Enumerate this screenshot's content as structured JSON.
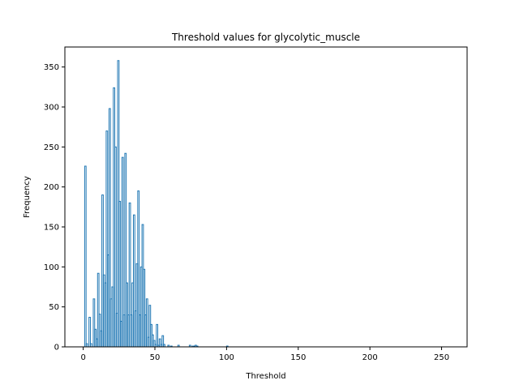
{
  "chart_data": {
    "type": "bar",
    "style": "step-histogram",
    "title": "Threshold values for glycolytic_muscle",
    "xlabel": "Threshold",
    "ylabel": "Frequency",
    "xlim": [
      -12.8,
      267.8
    ],
    "ylim": [
      0,
      375
    ],
    "xticks": [
      0,
      50,
      100,
      150,
      200,
      250
    ],
    "yticks": [
      0,
      50,
      100,
      150,
      200,
      250,
      300,
      350
    ],
    "grid": false,
    "line_color": "#1f77b4",
    "bin_width": 1,
    "bins": [
      {
        "x": 0,
        "value": 0
      },
      {
        "x": 1,
        "value": 226
      },
      {
        "x": 2,
        "value": 4
      },
      {
        "x": 3,
        "value": 0
      },
      {
        "x": 4,
        "value": 37
      },
      {
        "x": 5,
        "value": 4
      },
      {
        "x": 6,
        "value": 0
      },
      {
        "x": 7,
        "value": 60
      },
      {
        "x": 8,
        "value": 22
      },
      {
        "x": 9,
        "value": 10
      },
      {
        "x": 10,
        "value": 92
      },
      {
        "x": 11,
        "value": 41
      },
      {
        "x": 12,
        "value": 20
      },
      {
        "x": 13,
        "value": 190
      },
      {
        "x": 14,
        "value": 90
      },
      {
        "x": 15,
        "value": 80
      },
      {
        "x": 16,
        "value": 270
      },
      {
        "x": 17,
        "value": 115
      },
      {
        "x": 18,
        "value": 298
      },
      {
        "x": 19,
        "value": 60
      },
      {
        "x": 20,
        "value": 75
      },
      {
        "x": 21,
        "value": 324
      },
      {
        "x": 22,
        "value": 250
      },
      {
        "x": 23,
        "value": 42
      },
      {
        "x": 24,
        "value": 358
      },
      {
        "x": 25,
        "value": 182
      },
      {
        "x": 26,
        "value": 32
      },
      {
        "x": 27,
        "value": 237
      },
      {
        "x": 28,
        "value": 40
      },
      {
        "x": 29,
        "value": 242
      },
      {
        "x": 30,
        "value": 80
      },
      {
        "x": 31,
        "value": 40
      },
      {
        "x": 32,
        "value": 180
      },
      {
        "x": 33,
        "value": 40
      },
      {
        "x": 34,
        "value": 80
      },
      {
        "x": 35,
        "value": 165
      },
      {
        "x": 36,
        "value": 45
      },
      {
        "x": 37,
        "value": 104
      },
      {
        "x": 38,
        "value": 195
      },
      {
        "x": 39,
        "value": 40
      },
      {
        "x": 40,
        "value": 100
      },
      {
        "x": 41,
        "value": 153
      },
      {
        "x": 42,
        "value": 97
      },
      {
        "x": 43,
        "value": 40
      },
      {
        "x": 44,
        "value": 60
      },
      {
        "x": 45,
        "value": 12
      },
      {
        "x": 46,
        "value": 52
      },
      {
        "x": 47,
        "value": 28
      },
      {
        "x": 48,
        "value": 15
      },
      {
        "x": 49,
        "value": 8
      },
      {
        "x": 50,
        "value": 3
      },
      {
        "x": 51,
        "value": 28
      },
      {
        "x": 52,
        "value": 2
      },
      {
        "x": 53,
        "value": 10
      },
      {
        "x": 54,
        "value": 3
      },
      {
        "x": 55,
        "value": 14
      },
      {
        "x": 56,
        "value": 3
      },
      {
        "x": 57,
        "value": 0
      },
      {
        "x": 58,
        "value": 0
      },
      {
        "x": 59,
        "value": 2
      },
      {
        "x": 60,
        "value": 0
      },
      {
        "x": 61,
        "value": 1
      },
      {
        "x": 62,
        "value": 0
      },
      {
        "x": 63,
        "value": 0
      },
      {
        "x": 64,
        "value": 0
      },
      {
        "x": 65,
        "value": 0
      },
      {
        "x": 66,
        "value": 2
      },
      {
        "x": 67,
        "value": 0
      },
      {
        "x": 68,
        "value": 0
      },
      {
        "x": 69,
        "value": 0
      },
      {
        "x": 70,
        "value": 0
      },
      {
        "x": 71,
        "value": 0
      },
      {
        "x": 72,
        "value": 0
      },
      {
        "x": 73,
        "value": 0
      },
      {
        "x": 74,
        "value": 2
      },
      {
        "x": 75,
        "value": 0
      },
      {
        "x": 76,
        "value": 1
      },
      {
        "x": 77,
        "value": 1
      },
      {
        "x": 78,
        "value": 2
      },
      {
        "x": 79,
        "value": 1
      },
      {
        "x": 80,
        "value": 0
      },
      {
        "x": 81,
        "value": 0
      },
      {
        "x": 82,
        "value": 0
      },
      {
        "x": 83,
        "value": 0
      },
      {
        "x": 84,
        "value": 0
      },
      {
        "x": 85,
        "value": 0
      },
      {
        "x": 86,
        "value": 0
      },
      {
        "x": 87,
        "value": 0
      },
      {
        "x": 88,
        "value": 0
      },
      {
        "x": 89,
        "value": 0
      },
      {
        "x": 90,
        "value": 0
      },
      {
        "x": 91,
        "value": 0
      },
      {
        "x": 92,
        "value": 0
      },
      {
        "x": 93,
        "value": 0
      },
      {
        "x": 94,
        "value": 0
      },
      {
        "x": 95,
        "value": 0
      },
      {
        "x": 96,
        "value": 0
      },
      {
        "x": 97,
        "value": 0
      },
      {
        "x": 98,
        "value": 0
      },
      {
        "x": 99,
        "value": 0
      },
      {
        "x": 100,
        "value": 1
      },
      {
        "x": 101,
        "value": 0
      },
      {
        "x": 254,
        "value": 0
      }
    ]
  }
}
